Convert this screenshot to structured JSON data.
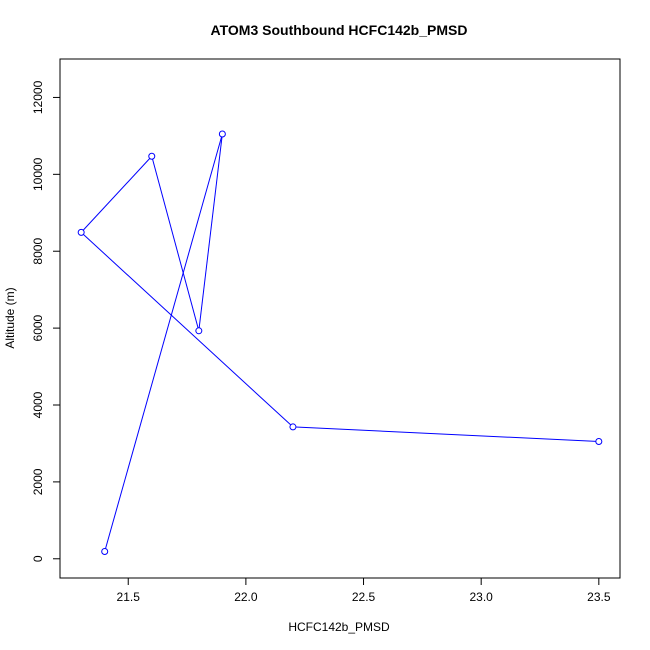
{
  "chart_data": {
    "type": "line",
    "title": "ATOM3 Southbound HCFC142b_PMSD",
    "xlabel": "HCFC142b_PMSD",
    "ylabel": "Altitude (m)",
    "xlim": [
      21.21,
      23.59
    ],
    "ylim": [
      -500,
      13000
    ],
    "x_ticks": [
      21.5,
      22.0,
      22.5,
      23.0,
      23.5
    ],
    "x_tick_labels": [
      "21.5",
      "22.0",
      "22.5",
      "23.0",
      "23.5"
    ],
    "y_ticks": [
      0,
      2000,
      4000,
      6000,
      8000,
      10000,
      12000
    ],
    "y_tick_labels": [
      "0",
      "2000",
      "4000",
      "6000",
      "8000",
      "10000",
      "12000"
    ],
    "grid": false,
    "series": [
      {
        "color": "#0000ff",
        "marker": "open-circle",
        "points": [
          {
            "x": 21.4,
            "y": 190
          },
          {
            "x": 21.9,
            "y": 11050
          },
          {
            "x": 21.8,
            "y": 5930
          },
          {
            "x": 21.6,
            "y": 10470
          },
          {
            "x": 21.3,
            "y": 8490
          },
          {
            "x": 22.2,
            "y": 3430
          },
          {
            "x": 23.5,
            "y": 3050
          }
        ]
      }
    ]
  }
}
